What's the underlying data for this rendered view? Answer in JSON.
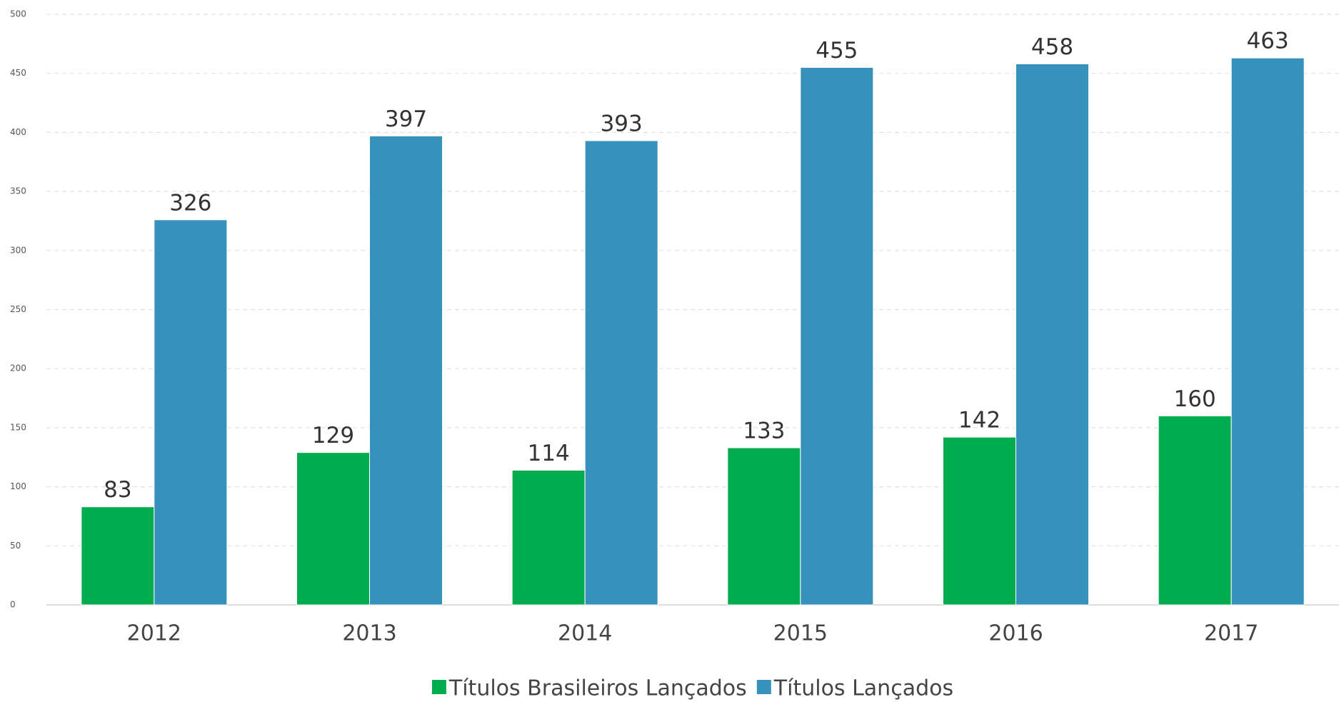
{
  "chart_data": {
    "type": "bar",
    "categories": [
      "2012",
      "2013",
      "2014",
      "2015",
      "2016",
      "2017"
    ],
    "series": [
      {
        "name": "Títulos Brasileiros Lançados",
        "color": "#00ac4e",
        "values": [
          83,
          129,
          114,
          133,
          142,
          160
        ]
      },
      {
        "name": "Títulos Lançados",
        "color": "#3792bb",
        "values": [
          326,
          397,
          393,
          455,
          458,
          463
        ]
      }
    ],
    "ylim": [
      0,
      500
    ],
    "yticks": [
      0,
      50,
      100,
      150,
      200,
      250,
      300,
      350,
      400,
      450,
      500
    ],
    "grid": true,
    "legend": "bottom"
  }
}
